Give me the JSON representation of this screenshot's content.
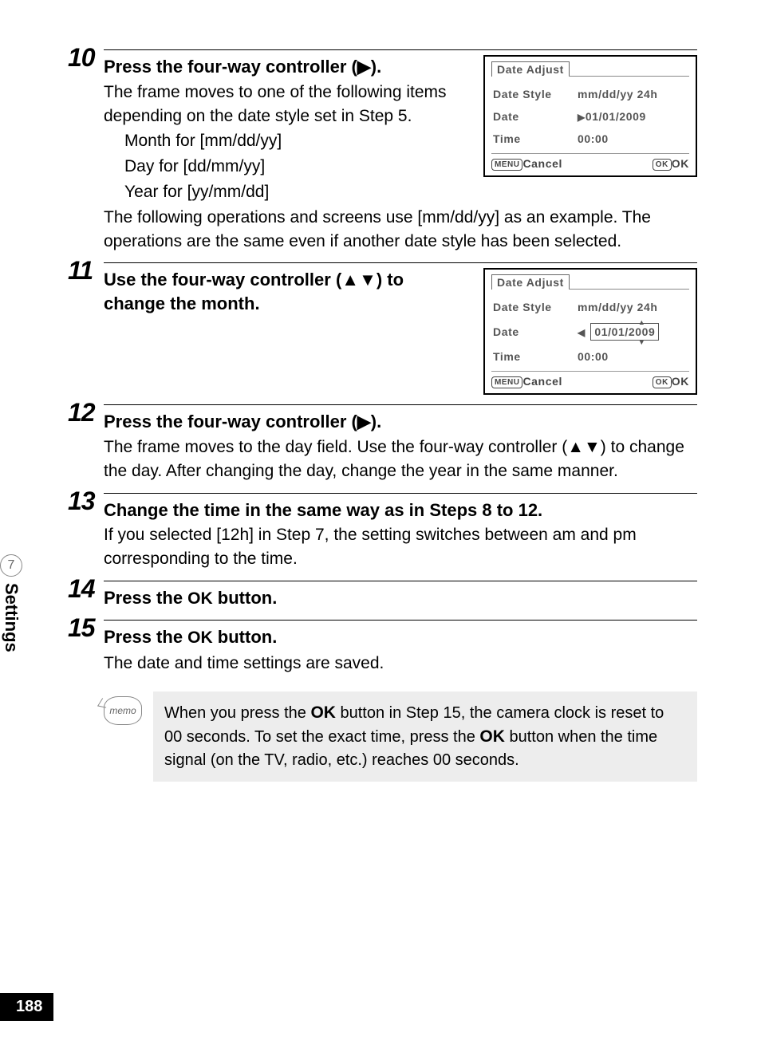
{
  "side": {
    "chapter_num": "7",
    "chapter_label": "Settings"
  },
  "page_number": "188",
  "glyphs": {
    "right": "▶",
    "up": "▲",
    "down": "▼",
    "left": "◀"
  },
  "steps": {
    "10": {
      "num": "10",
      "head_a": "Press the four-way controller (",
      "head_b": ").",
      "body1": "The frame moves to one of the following items depending on the date style set in Step 5.",
      "body2a": "Month for [mm/dd/yy]",
      "body2b": "Day for [dd/mm/yy]",
      "body2c": "Year for [yy/mm/dd]",
      "body3": "The following operations and screens use [mm/dd/yy] as an example. The operations are the same even if another date style has been selected."
    },
    "11": {
      "num": "11",
      "head_a": "Use the four-way controller (",
      "head_b": ") to change the month."
    },
    "12": {
      "num": "12",
      "head_a": "Press the four-way controller (",
      "head_b": ").",
      "body": "The frame moves to the day field. Use the four-way controller (▲▼) to change the day. After changing the day, change the year in the same manner."
    },
    "13": {
      "num": "13",
      "head": "Change the time in the same way as in Steps 8 to 12.",
      "body": "If you selected [12h] in Step 7, the setting switches between am and pm corresponding to the time."
    },
    "14": {
      "num": "14",
      "head_a": "Press the ",
      "head_ok": "OK",
      "head_b": " button."
    },
    "15": {
      "num": "15",
      "head_a": "Press the ",
      "head_ok": "OK",
      "head_b": " button.",
      "body": "The date and time settings are saved."
    }
  },
  "screen": {
    "title": "Date Adjust",
    "row_style_label": "Date Style",
    "row_style_val": "mm/dd/yy  24h",
    "row_date_label": "Date",
    "row_date_val_10": "01/01/2009",
    "row_date_val_11": "01/01/2009",
    "row_time_label": "Time",
    "row_time_val": "00:00",
    "menu_key": "MENU",
    "cancel": "Cancel",
    "ok_key": "OK",
    "ok": "OK"
  },
  "memo": {
    "icon_label": "memo",
    "text_a": "When you press the ",
    "ok1": "OK",
    "text_b": " button in Step 15, the camera clock is reset to 00 seconds. To set the exact time, press the ",
    "ok2": "OK",
    "text_c": " button when the time signal (on the TV, radio, etc.) reaches 00 seconds."
  }
}
